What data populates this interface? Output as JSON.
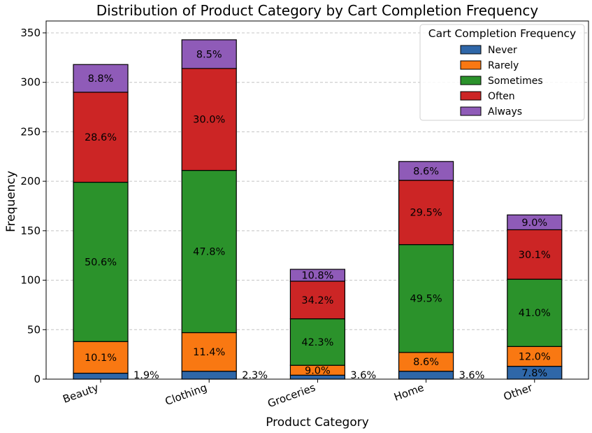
{
  "chart_data": {
    "type": "bar",
    "stacked": true,
    "title": "Distribution of Product Category by Cart Completion Frequency",
    "xlabel": "Product Category",
    "ylabel": "Frequency",
    "ylim": [
      0,
      362
    ],
    "yticks": [
      0,
      50,
      100,
      150,
      200,
      250,
      300,
      350
    ],
    "grid": "y-dashed",
    "legend": {
      "title": "Cart Completion Frequency",
      "placement": "top-right"
    },
    "categories": [
      "Beauty",
      "Clothing",
      "Groceries",
      "Home",
      "Other"
    ],
    "series": [
      {
        "name": "Never",
        "color": "#2f67a8",
        "values": [
          6,
          8,
          4,
          8,
          13
        ],
        "labels": [
          "1.9%",
          "2.3%",
          "3.6%",
          "3.6%",
          "7.8%"
        ]
      },
      {
        "name": "Rarely",
        "color": "#f97812",
        "values": [
          32,
          39,
          10,
          19,
          20
        ],
        "labels": [
          "10.1%",
          "11.4%",
          "9.0%",
          "8.6%",
          "12.0%"
        ]
      },
      {
        "name": "Sometimes",
        "color": "#2b922b",
        "values": [
          161,
          164,
          47,
          109,
          68
        ],
        "labels": [
          "50.6%",
          "47.8%",
          "42.3%",
          "49.5%",
          "41.0%"
        ]
      },
      {
        "name": "Often",
        "color": "#cc2525",
        "values": [
          91,
          103,
          38,
          65,
          50
        ],
        "labels": [
          "28.6%",
          "30.0%",
          "34.2%",
          "29.5%",
          "30.1%"
        ]
      },
      {
        "name": "Always",
        "color": "#8f5bb8",
        "values": [
          28,
          29,
          12,
          19,
          15
        ],
        "labels": [
          "8.8%",
          "8.5%",
          "10.8%",
          "8.6%",
          "9.0%"
        ]
      }
    ]
  }
}
